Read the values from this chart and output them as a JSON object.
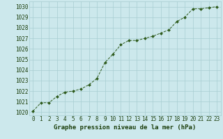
{
  "x": [
    0,
    1,
    2,
    3,
    4,
    5,
    6,
    7,
    8,
    9,
    10,
    11,
    12,
    13,
    14,
    15,
    16,
    17,
    18,
    19,
    20,
    21,
    22,
    23
  ],
  "y": [
    1020.1,
    1020.9,
    1020.9,
    1021.5,
    1021.9,
    1022.0,
    1022.2,
    1022.6,
    1023.2,
    1024.7,
    1025.5,
    1026.4,
    1026.8,
    1026.8,
    1027.0,
    1027.2,
    1027.5,
    1027.8,
    1028.6,
    1029.0,
    1029.8,
    1029.8,
    1029.9,
    1030.0
  ],
  "line_color": "#2d5a1b",
  "marker_color": "#2d5a1b",
  "bg_color": "#cce8ec",
  "grid_color": "#a8cdd1",
  "xlabel": "Graphe pression niveau de la mer (hPa)",
  "xlabel_color": "#1a3d0a",
  "tick_color": "#1a3d0a",
  "ylim_min": 1019.7,
  "ylim_max": 1030.5,
  "yticks": [
    1020,
    1021,
    1022,
    1023,
    1024,
    1025,
    1026,
    1027,
    1028,
    1029,
    1030
  ],
  "tick_fontsize": 5.5,
  "xlabel_fontsize": 6.5
}
